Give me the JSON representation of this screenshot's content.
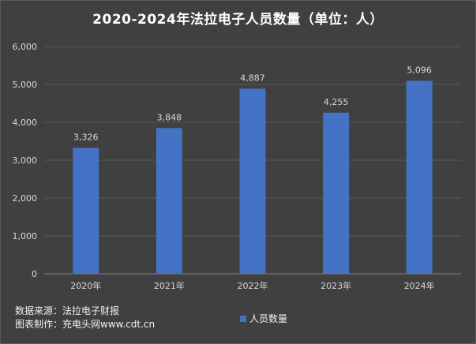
{
  "chart_data": {
    "type": "bar",
    "title": "2020-2024年法拉电子人员数量（单位：人）",
    "categories": [
      "2020年",
      "2021年",
      "2022年",
      "2023年",
      "2024年"
    ],
    "series": [
      {
        "name": "人员数量",
        "values": [
          3326,
          3848,
          4887,
          4255,
          5096
        ],
        "labels": [
          "3,326",
          "3,848",
          "4,887",
          "4,255",
          "5,096"
        ],
        "color": "#4472c4"
      }
    ],
    "ylim": [
      0,
      6000
    ],
    "yticks": [
      0,
      1000,
      2000,
      3000,
      4000,
      5000,
      6000
    ],
    "ytick_labels": [
      "0",
      "1,000",
      "2,000",
      "3,000",
      "4,000",
      "5,000",
      "6,000"
    ],
    "grid": true,
    "legend": "bottom"
  },
  "footer": {
    "source": "数据来源：法拉电子财报",
    "credit": "图表制作：充电头网www.cdt.cn"
  },
  "colors": {
    "background": "#404040",
    "gridline": "#595959",
    "text": "#d9d9d9",
    "bar": "#4472c4"
  }
}
